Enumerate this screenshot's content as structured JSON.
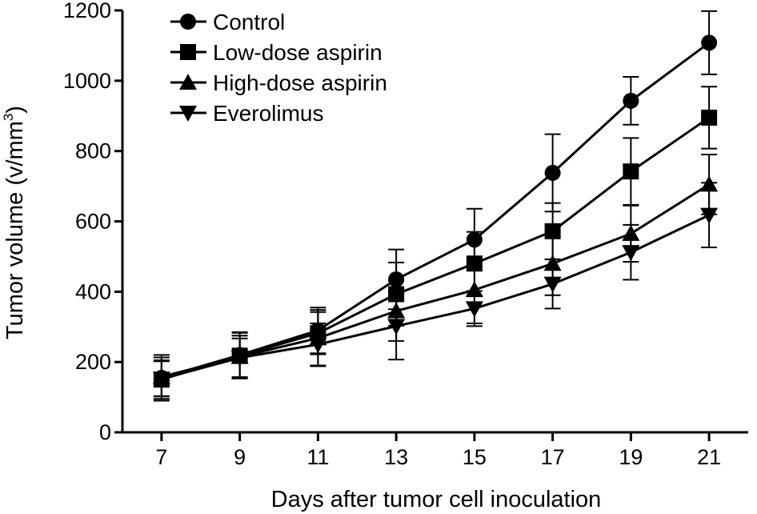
{
  "chart_data": {
    "type": "line",
    "title": "",
    "xlabel": "Days after tumor cell inoculation",
    "ylabel": "Tumor volume (v/mm",
    "ylabel_sup": "3",
    "ylabel_close": ")",
    "x": [
      7,
      9,
      11,
      13,
      15,
      17,
      19,
      21
    ],
    "xlim": [
      6,
      22
    ],
    "ylim": [
      0,
      1200
    ],
    "yticks": [
      0,
      200,
      400,
      600,
      800,
      1000,
      1200
    ],
    "legend_position": "top-left",
    "grid": false,
    "series": [
      {
        "name": "Control",
        "marker": "circle",
        "values": [
          155,
          220,
          290,
          435,
          548,
          738,
          943,
          1108
        ],
        "errors": [
          65,
          65,
          65,
          85,
          88,
          110,
          68,
          90
        ]
      },
      {
        "name": "Low-dose aspirin",
        "marker": "square",
        "values": [
          150,
          218,
          282,
          393,
          480,
          572,
          742,
          895
        ],
        "errors": [
          55,
          65,
          60,
          90,
          90,
          80,
          95,
          88
        ]
      },
      {
        "name": "High-dose aspirin",
        "marker": "triangle-up",
        "values": [
          158,
          215,
          268,
          345,
          405,
          480,
          565,
          705
        ],
        "errors": [
          55,
          60,
          80,
          85,
          95,
          90,
          80,
          85
        ]
      },
      {
        "name": "Everolimus",
        "marker": "triangle-down",
        "values": [
          152,
          212,
          250,
          302,
          352,
          422,
          512,
          618
        ],
        "errors": [
          50,
          55,
          60,
          95,
          50,
          70,
          78,
          92
        ]
      }
    ]
  }
}
